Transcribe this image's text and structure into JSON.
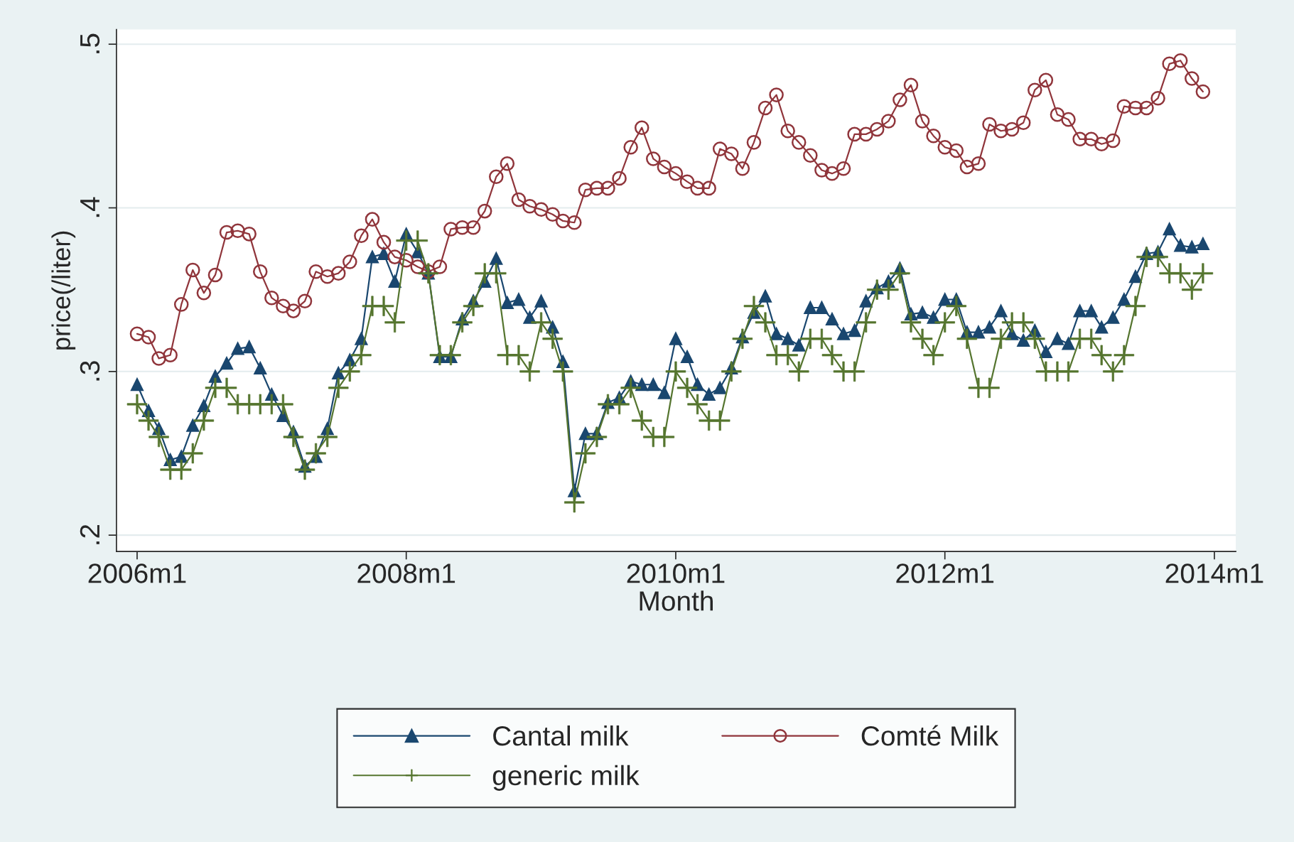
{
  "chart_data": {
    "type": "line",
    "xlabel": "Month",
    "ylabel": "price(/liter)",
    "x": [
      "2006-01",
      "2006-02",
      "2006-03",
      "2006-04",
      "2006-05",
      "2006-06",
      "2006-07",
      "2006-08",
      "2006-09",
      "2006-10",
      "2006-11",
      "2006-12",
      "2007-01",
      "2007-02",
      "2007-03",
      "2007-04",
      "2007-05",
      "2007-06",
      "2007-07",
      "2007-08",
      "2007-09",
      "2007-10",
      "2007-11",
      "2007-12",
      "2008-01",
      "2008-02",
      "2008-03",
      "2008-04",
      "2008-05",
      "2008-06",
      "2008-07",
      "2008-08",
      "2008-09",
      "2008-10",
      "2008-11",
      "2008-12",
      "2009-01",
      "2009-02",
      "2009-03",
      "2009-04",
      "2009-05",
      "2009-06",
      "2009-07",
      "2009-08",
      "2009-09",
      "2009-10",
      "2009-11",
      "2009-12",
      "2010-01",
      "2010-02",
      "2010-03",
      "2010-04",
      "2010-05",
      "2010-06",
      "2010-07",
      "2010-08",
      "2010-09",
      "2010-10",
      "2010-11",
      "2010-12",
      "2011-01",
      "2011-02",
      "2011-03",
      "2011-04",
      "2011-05",
      "2011-06",
      "2011-07",
      "2011-08",
      "2011-09",
      "2011-10",
      "2011-11",
      "2011-12",
      "2012-01",
      "2012-02",
      "2012-03",
      "2012-04",
      "2012-05",
      "2012-06",
      "2012-07",
      "2012-08",
      "2012-09",
      "2012-10",
      "2012-11",
      "2012-12",
      "2013-01",
      "2013-02",
      "2013-03",
      "2013-04",
      "2013-05",
      "2013-06",
      "2013-07",
      "2013-08",
      "2013-09",
      "2013-10",
      "2013-11",
      "2013-12"
    ],
    "series": [
      {
        "name": "Cantal milk",
        "color": "#1a476f",
        "marker": "triangle",
        "values": [
          0.292,
          0.276,
          0.265,
          0.246,
          0.248,
          0.267,
          0.279,
          0.297,
          0.305,
          0.314,
          0.315,
          0.302,
          0.286,
          0.273,
          0.263,
          0.242,
          0.248,
          0.265,
          0.299,
          0.307,
          0.32,
          0.37,
          0.372,
          0.355,
          0.384,
          0.373,
          0.36,
          0.309,
          0.309,
          0.332,
          0.343,
          0.355,
          0.369,
          0.342,
          0.344,
          0.333,
          0.343,
          0.327,
          0.306,
          0.227,
          0.262,
          0.262,
          0.281,
          0.284,
          0.294,
          0.292,
          0.292,
          0.287,
          0.32,
          0.309,
          0.292,
          0.286,
          0.29,
          0.302,
          0.321,
          0.336,
          0.346,
          0.323,
          0.32,
          0.316,
          0.339,
          0.339,
          0.332,
          0.323,
          0.325,
          0.343,
          0.351,
          0.355,
          0.363,
          0.335,
          0.336,
          0.333,
          0.344,
          0.344,
          0.324,
          0.324,
          0.327,
          0.337,
          0.323,
          0.319,
          0.325,
          0.312,
          0.32,
          0.317,
          0.337,
          0.337,
          0.327,
          0.333,
          0.344,
          0.358,
          0.372,
          0.373,
          0.387,
          0.377,
          0.376,
          0.378
        ]
      },
      {
        "name": "Comté Milk",
        "color": "#90353b",
        "marker": "circle",
        "values": [
          0.323,
          0.321,
          0.308,
          0.31,
          0.341,
          0.362,
          0.348,
          0.359,
          0.385,
          0.386,
          0.384,
          0.361,
          0.345,
          0.34,
          0.337,
          0.343,
          0.361,
          0.358,
          0.36,
          0.367,
          0.383,
          0.393,
          0.379,
          0.37,
          0.368,
          0.364,
          0.361,
          0.364,
          0.387,
          0.388,
          0.388,
          0.398,
          0.419,
          0.427,
          0.405,
          0.401,
          0.399,
          0.396,
          0.392,
          0.391,
          0.411,
          0.412,
          0.412,
          0.418,
          0.437,
          0.449,
          0.43,
          0.425,
          0.421,
          0.416,
          0.412,
          0.412,
          0.436,
          0.433,
          0.424,
          0.44,
          0.461,
          0.469,
          0.447,
          0.44,
          0.432,
          0.423,
          0.421,
          0.424,
          0.445,
          0.445,
          0.448,
          0.453,
          0.466,
          0.475,
          0.453,
          0.444,
          0.437,
          0.435,
          0.425,
          0.427,
          0.451,
          0.447,
          0.448,
          0.452,
          0.472,
          0.478,
          0.457,
          0.454,
          0.442,
          0.442,
          0.439,
          0.441,
          0.462,
          0.461,
          0.461,
          0.467,
          0.488,
          0.49,
          0.479,
          0.471
        ]
      },
      {
        "name": "generic milk",
        "color": "#55752f",
        "marker": "cross",
        "values": [
          0.28,
          0.27,
          0.26,
          0.24,
          0.24,
          0.25,
          0.27,
          0.29,
          0.29,
          0.28,
          0.28,
          0.28,
          0.28,
          0.28,
          0.26,
          0.24,
          0.25,
          0.26,
          0.29,
          0.3,
          0.31,
          0.34,
          0.34,
          0.33,
          0.38,
          0.38,
          0.36,
          0.31,
          0.31,
          0.33,
          0.34,
          0.36,
          0.36,
          0.31,
          0.31,
          0.3,
          0.33,
          0.32,
          0.3,
          0.22,
          0.25,
          0.26,
          0.28,
          0.28,
          0.29,
          0.27,
          0.26,
          0.26,
          0.3,
          0.29,
          0.28,
          0.27,
          0.27,
          0.3,
          0.32,
          0.34,
          0.33,
          0.31,
          0.31,
          0.3,
          0.32,
          0.32,
          0.31,
          0.3,
          0.3,
          0.33,
          0.35,
          0.35,
          0.36,
          0.33,
          0.32,
          0.31,
          0.33,
          0.34,
          0.32,
          0.29,
          0.29,
          0.32,
          0.33,
          0.33,
          0.32,
          0.3,
          0.3,
          0.3,
          0.32,
          0.32,
          0.31,
          0.3,
          0.31,
          0.34,
          0.37,
          0.37,
          0.36,
          0.36,
          0.35,
          0.36
        ]
      }
    ],
    "xlim": [
      "2005-11-06",
      "2014-02-28"
    ],
    "xticks": [
      {
        "value": "2006-01",
        "label": "2006m1"
      },
      {
        "value": "2008-01",
        "label": "2008m1"
      },
      {
        "value": "2010-01",
        "label": "2010m1"
      },
      {
        "value": "2012-01",
        "label": "2012m1"
      },
      {
        "value": "2014-01",
        "label": "2014m1"
      }
    ],
    "ylim": [
      0.19,
      0.509
    ],
    "yticks": [
      {
        "value": 0.2,
        "label": ".2"
      },
      {
        "value": 0.3,
        "label": ".3"
      },
      {
        "value": 0.4,
        "label": ".4"
      },
      {
        "value": 0.5,
        "label": ".5"
      }
    ],
    "grid": "y",
    "legend": "bottom",
    "line_style": "solid"
  }
}
